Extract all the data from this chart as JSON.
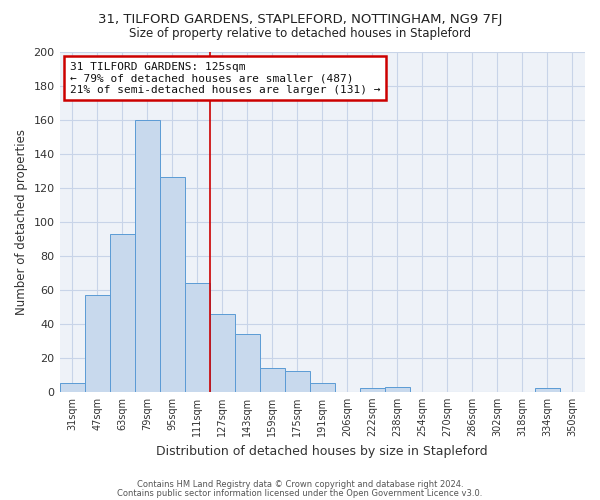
{
  "title": "31, TILFORD GARDENS, STAPLEFORD, NOTTINGHAM, NG9 7FJ",
  "subtitle": "Size of property relative to detached houses in Stapleford",
  "xlabel": "Distribution of detached houses by size in Stapleford",
  "ylabel": "Number of detached properties",
  "bar_color": "#c8d9ed",
  "bar_edge_color": "#5b9bd5",
  "categories": [
    "31sqm",
    "47sqm",
    "63sqm",
    "79sqm",
    "95sqm",
    "111sqm",
    "127sqm",
    "143sqm",
    "159sqm",
    "175sqm",
    "191sqm",
    "206sqm",
    "222sqm",
    "238sqm",
    "254sqm",
    "270sqm",
    "286sqm",
    "302sqm",
    "318sqm",
    "334sqm",
    "350sqm"
  ],
  "values": [
    5,
    57,
    93,
    160,
    126,
    64,
    46,
    34,
    14,
    12,
    5,
    0,
    2,
    3,
    0,
    0,
    0,
    0,
    0,
    2,
    0
  ],
  "ylim": [
    0,
    200
  ],
  "yticks": [
    0,
    20,
    40,
    60,
    80,
    100,
    120,
    140,
    160,
    180,
    200
  ],
  "annotation_title": "31 TILFORD GARDENS: 125sqm",
  "annotation_line1": "← 79% of detached houses are smaller (487)",
  "annotation_line2": "21% of semi-detached houses are larger (131) →",
  "annotation_box_color": "#ffffff",
  "annotation_box_edge_color": "#cc0000",
  "grid_color": "#c8d4e8",
  "bg_color": "#eef2f8",
  "footer1": "Contains HM Land Registry data © Crown copyright and database right 2024.",
  "footer2": "Contains public sector information licensed under the Open Government Licence v3.0."
}
